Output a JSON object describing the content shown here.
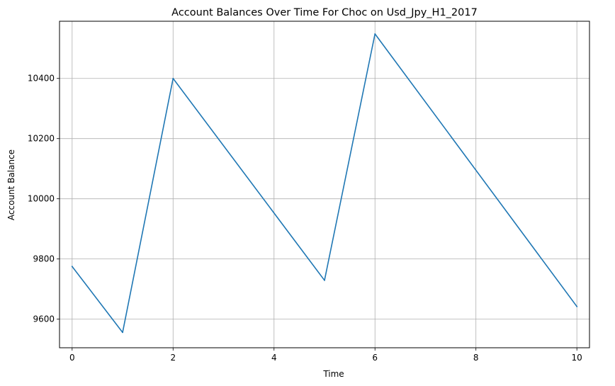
{
  "chart_data": {
    "type": "line",
    "title": "Account Balances Over Time For Choc on Usd_Jpy_H1_2017",
    "xlabel": "Time",
    "ylabel": "Account Balance",
    "xlim": [
      -0.25,
      10.25
    ],
    "ylim": [
      9505,
      10590
    ],
    "xticks": [
      0,
      2,
      4,
      6,
      8,
      10
    ],
    "yticks": [
      9600,
      9800,
      10000,
      10200,
      10400
    ],
    "grid": true,
    "series": [
      {
        "color": "#1f77b4",
        "x": [
          0,
          1,
          2,
          5,
          6,
          10
        ],
        "y": [
          9775,
          9556,
          10400,
          9729,
          10548,
          9642
        ]
      }
    ]
  }
}
